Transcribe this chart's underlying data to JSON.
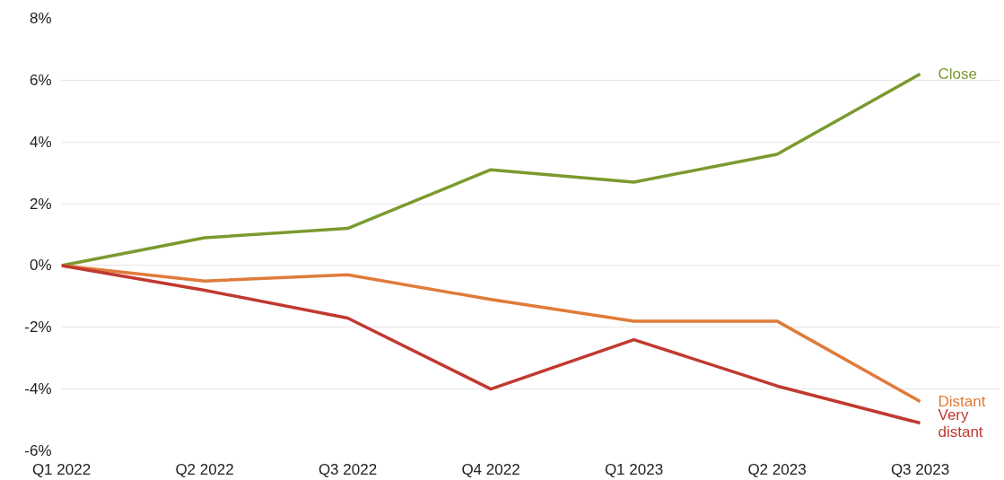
{
  "chart_data": {
    "type": "line",
    "categories": [
      "Q1 2022",
      "Q2 2022",
      "Q3 2022",
      "Q4 2022",
      "Q1 2023",
      "Q2 2023",
      "Q3 2023"
    ],
    "series": [
      {
        "name": "Close",
        "color": "#7a9a2e",
        "values": [
          0,
          0.9,
          1.2,
          3.1,
          2.7,
          3.6,
          6.2
        ]
      },
      {
        "name": "Distant",
        "color": "#e07b39",
        "values": [
          0,
          -0.5,
          -0.3,
          -1.1,
          -1.8,
          -1.8,
          -4.4
        ]
      },
      {
        "name": "Very distant",
        "color": "#c0392f",
        "values": [
          0,
          -0.8,
          -1.7,
          -4.0,
          -2.4,
          -3.9,
          -5.1
        ]
      }
    ],
    "ylim": [
      -6,
      8
    ],
    "yticks": [
      {
        "value": -6,
        "label": "-6%"
      },
      {
        "value": -4,
        "label": "-4%"
      },
      {
        "value": -2,
        "label": "-2%"
      },
      {
        "value": 0,
        "label": "0%"
      },
      {
        "value": 2,
        "label": "2%"
      },
      {
        "value": 4,
        "label": "4%"
      },
      {
        "value": 6,
        "label": "6%"
      },
      {
        "value": 8,
        "label": "8%"
      }
    ],
    "grid": "y",
    "marker": "none",
    "line_style": "solid"
  }
}
